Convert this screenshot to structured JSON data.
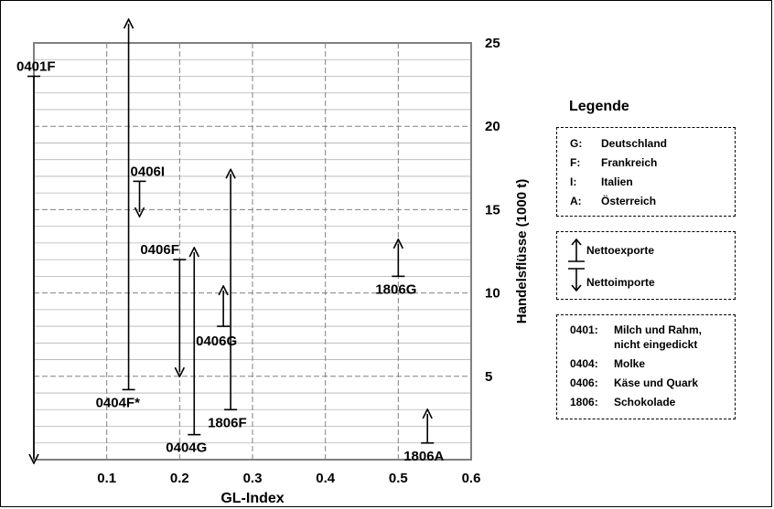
{
  "chart_data": {
    "type": "range-arrows",
    "xlabel": "GL-Index",
    "ylabel": "Handelsflüsse (1000 t)",
    "xlim": [
      0,
      0.6
    ],
    "ylim": [
      0,
      25
    ],
    "x_ticks": [
      "0.1",
      "0.2",
      "0.3",
      "0.4",
      "0.5",
      "0.6"
    ],
    "y_ticks": [
      "5",
      "10",
      "15",
      "20",
      "25"
    ],
    "grid": true,
    "items": [
      {
        "label": "0401F",
        "x": 0.0,
        "start": 23.0,
        "end": 0.0,
        "direction": "import"
      },
      {
        "label": "0404F*",
        "x": 0.13,
        "start": 4.2,
        "end": 26.2,
        "direction": "export"
      },
      {
        "label": "0406I",
        "x": 0.145,
        "start": 16.7,
        "end": 14.8,
        "direction": "import"
      },
      {
        "label": "0406F",
        "x": 0.2,
        "start": 12.0,
        "end": 5.2,
        "direction": "import"
      },
      {
        "label": "0404G",
        "x": 0.22,
        "start": 1.5,
        "end": 12.5,
        "direction": "export"
      },
      {
        "label": "0406G",
        "x": 0.26,
        "start": 8.0,
        "end": 10.2,
        "direction": "export"
      },
      {
        "label": "1806F",
        "x": 0.27,
        "start": 3.0,
        "end": 17.2,
        "direction": "export"
      },
      {
        "label": "1806G",
        "x": 0.5,
        "start": 11.0,
        "end": 13.0,
        "direction": "export"
      },
      {
        "label": "1806A",
        "x": 0.54,
        "start": 1.0,
        "end": 2.8,
        "direction": "export"
      }
    ]
  },
  "legend": {
    "title": "Legende",
    "countries": [
      {
        "code": "G:",
        "name": "Deutschland"
      },
      {
        "code": "F:",
        "name": "Frankreich"
      },
      {
        "code": "I:",
        "name": "Italien"
      },
      {
        "code": "A:",
        "name": "Österreich"
      }
    ],
    "flows": {
      "export": "Nettoexporte",
      "import": "Nettoimporte"
    },
    "products": [
      {
        "code": "0401:",
        "name": "Milch und Rahm, nicht eingedickt"
      },
      {
        "code": "0404:",
        "name": "Molke"
      },
      {
        "code": "0406:",
        "name": "Käse und Quark"
      },
      {
        "code": "1806:",
        "name": "Schokolade"
      }
    ]
  }
}
